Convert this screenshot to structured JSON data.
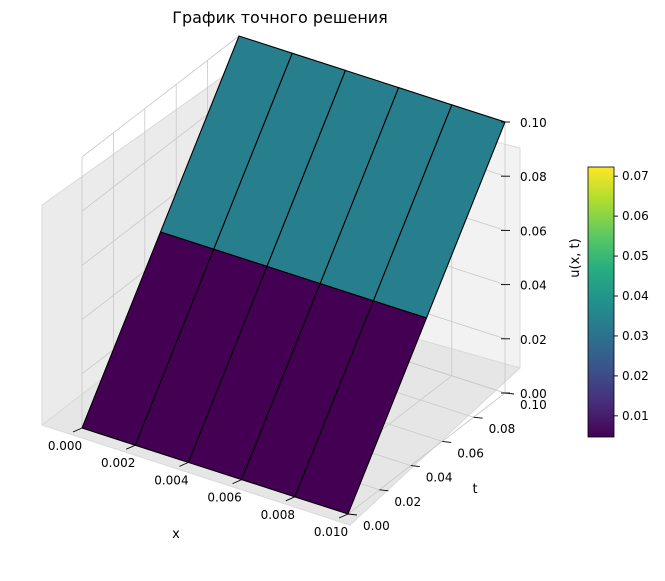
{
  "chart_data": {
    "type": "surface",
    "title": "График точного решения",
    "xlabel": "x",
    "ylabel": "t",
    "zlabel": "u(x, t)",
    "x": [
      0.0,
      0.002,
      0.004,
      0.006,
      0.008,
      0.01
    ],
    "t": [
      0.0,
      0.05,
      0.1
    ],
    "u": [
      [
        0.0,
        0.0,
        0.0,
        0.0,
        0.0,
        0.0
      ],
      [
        0.05,
        0.05,
        0.05,
        0.05,
        0.05,
        0.05
      ],
      [
        0.1,
        0.1,
        0.1,
        0.1,
        0.1,
        0.1
      ]
    ],
    "face_values": [
      [
        0.0047,
        0.0047,
        0.0047,
        0.0047,
        0.0047
      ],
      [
        0.0337,
        0.0337,
        0.0337,
        0.0337,
        0.0337
      ],
      [
        0.0723,
        0.0723,
        0.0723,
        0.0723,
        0.0723
      ]
    ],
    "xlim": [
      0.0,
      0.01
    ],
    "tlim": [
      0.0,
      0.1
    ],
    "zlim": [
      0.0,
      0.1
    ],
    "x_ticks": [
      "0.000",
      "0.002",
      "0.004",
      "0.006",
      "0.008",
      "0.010"
    ],
    "t_ticks": [
      "0.00",
      "0.02",
      "0.04",
      "0.06",
      "0.08",
      "0.10"
    ],
    "z_ticks": [
      "0.00",
      "0.02",
      "0.04",
      "0.06",
      "0.08",
      "0.10"
    ],
    "colorbar": {
      "colormap": "viridis",
      "range": [
        0.0047,
        0.0723
      ],
      "ticks": [
        "0.01",
        "0.02",
        "0.03",
        "0.04",
        "0.05",
        "0.06",
        "0.07"
      ],
      "tick_values": [
        0.01,
        0.02,
        0.03,
        0.04,
        0.05,
        0.06,
        0.07
      ]
    },
    "grid": true,
    "edgecolor": "#000000"
  }
}
